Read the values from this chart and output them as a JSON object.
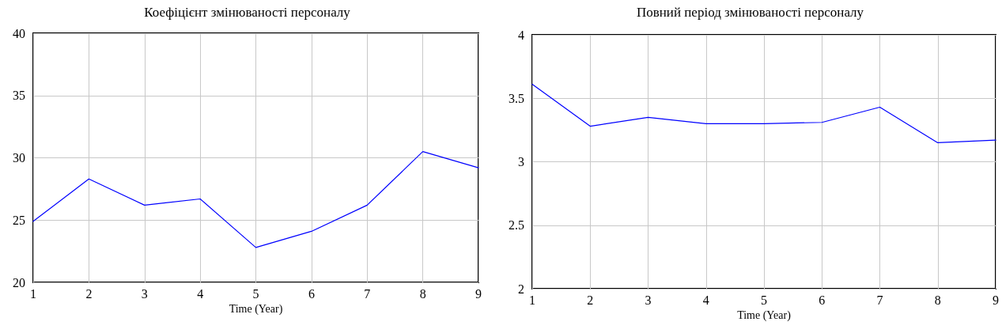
{
  "chart_data": [
    {
      "type": "line",
      "title": "Коефіцієнт змінюваності персоналу",
      "xlabel": "Time (Year)",
      "x": [
        1,
        2,
        3,
        4,
        5,
        6,
        7,
        8,
        9
      ],
      "xlim": [
        1,
        9
      ],
      "xticks": [
        1,
        2,
        3,
        4,
        5,
        6,
        7,
        8,
        9
      ],
      "ylim": [
        20,
        40
      ],
      "yticks": [
        20,
        25,
        30,
        35,
        40
      ],
      "grid": true,
      "marker": "none",
      "line_style": "solid",
      "series": [
        {
          "color": "#0000ff",
          "values": [
            24.9,
            28.3,
            26.2,
            26.7,
            22.8,
            24.1,
            26.2,
            30.5,
            29.2
          ]
        }
      ]
    },
    {
      "type": "line",
      "title": "Повний період змінюваності персоналу",
      "xlabel": "Time (Year)",
      "x": [
        1,
        2,
        3,
        4,
        5,
        6,
        7,
        8,
        9
      ],
      "xlim": [
        1,
        9
      ],
      "xticks": [
        1,
        2,
        3,
        4,
        5,
        6,
        7,
        8,
        9
      ],
      "ylim": [
        2,
        4
      ],
      "yticks": [
        2,
        2.5,
        3,
        3.5,
        4
      ],
      "grid": true,
      "marker": "none",
      "line_style": "solid",
      "series": [
        {
          "color": "#0000ff",
          "values": [
            3.61,
            3.28,
            3.35,
            3.3,
            3.3,
            3.31,
            3.43,
            3.15,
            3.17
          ]
        }
      ]
    }
  ]
}
